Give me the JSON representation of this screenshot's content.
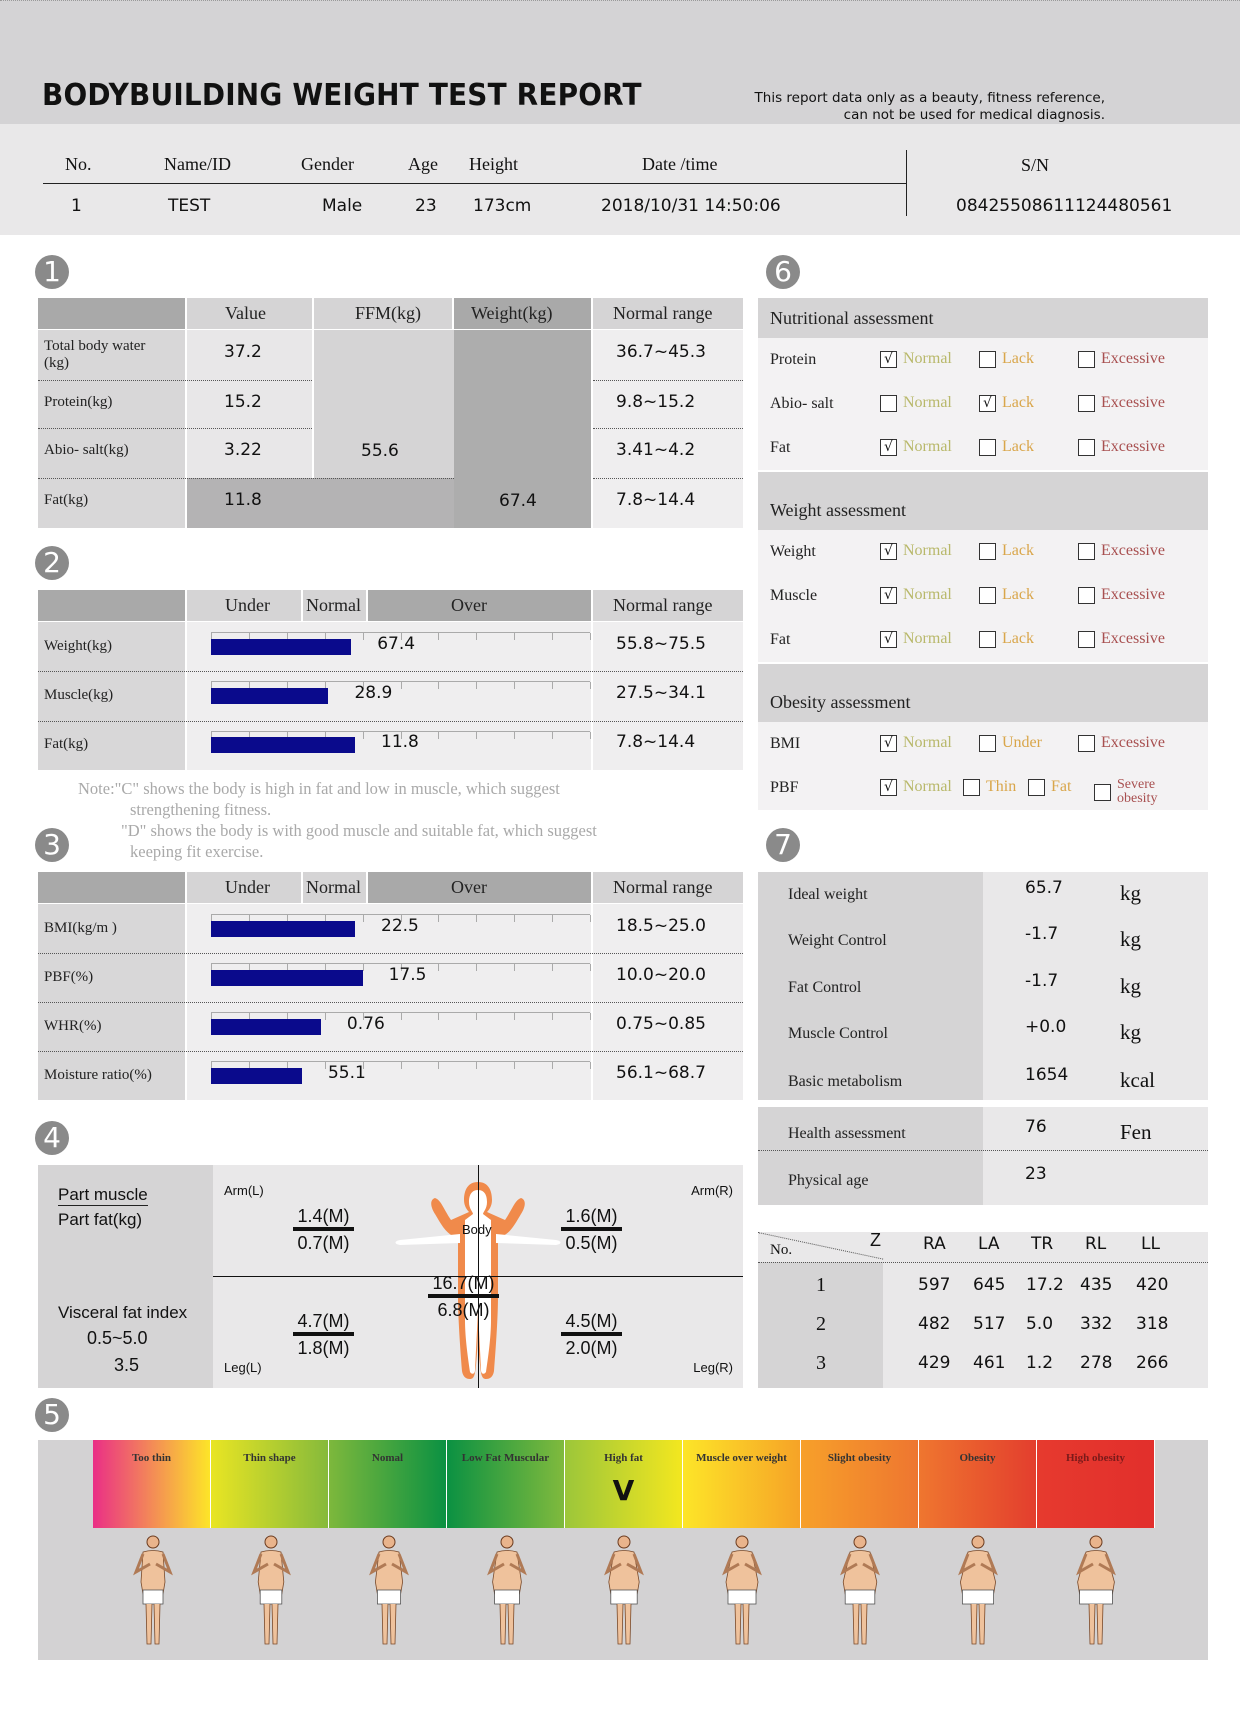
{
  "header": {
    "title": "BODYBUILDING WEIGHT TEST REPORT",
    "disclaimer_line1": "This report data only as a beauty, fitness reference,",
    "disclaimer_line2": "can not be used for medical diagnosis."
  },
  "info": {
    "headers": [
      "No.",
      "Name/ID",
      "Gender",
      "Age",
      "Height",
      "Date /time"
    ],
    "values": [
      "1",
      "TEST",
      "Male",
      "23",
      "173cm",
      "2018/10/31 14:50:06"
    ],
    "sn_label": "S/N",
    "sn_value": "08425508611124480561"
  },
  "sections": [
    "1",
    "2",
    "3",
    "4",
    "5",
    "6",
    "7"
  ],
  "composition": {
    "headers": [
      "Value",
      "FFM(kg)",
      "Weight(kg)",
      "Normal range"
    ],
    "rows": [
      {
        "label": "Total body water\n(kg)",
        "value": "37.2",
        "range": "36.7~45.3"
      },
      {
        "label": "Protein(kg)",
        "value": "15.2",
        "range": "9.8~15.2"
      },
      {
        "label": "Abio- salt(kg)",
        "value": "3.22",
        "range": "3.41~4.2"
      },
      {
        "label": "Fat(kg)",
        "value": "11.8",
        "range": "7.8~14.4"
      }
    ],
    "ffm": "55.6",
    "weight": "67.4"
  },
  "muscle_fat": {
    "headers": [
      "Under",
      "Normal",
      "Over",
      "Normal range"
    ],
    "rows": [
      {
        "label": "Weight(kg)",
        "value": "67.4",
        "fill": 0.37,
        "range": "55.8~75.5"
      },
      {
        "label": "Muscle(kg)",
        "value": "28.9",
        "fill": 0.31,
        "range": "27.5~34.1"
      },
      {
        "label": "Fat(kg)",
        "value": "11.8",
        "fill": 0.38,
        "range": "7.8~14.4"
      }
    ]
  },
  "note": {
    "line1": "Note:\"C\" shows the body is high in fat and low in muscle,  which suggest",
    "line2": "strengthening fitness.",
    "line3": "\"D\" shows the body is with good muscle and suitable fat,  which suggest",
    "line4": "keeping fit exercise."
  },
  "obesity_analysis": {
    "headers": [
      "Under",
      "Normal",
      "Over",
      "Normal range"
    ],
    "rows": [
      {
        "label": "BMI(kg/m )",
        "value": "22.5",
        "fill": 0.38,
        "range": "18.5~25.0"
      },
      {
        "label": "PBF(%)",
        "value": "17.5",
        "fill": 0.4,
        "range": "10.0~20.0"
      },
      {
        "label": "WHR(%)",
        "value": "0.76",
        "fill": 0.29,
        "range": "0.75~0.85"
      },
      {
        "label": "Moisture ratio(%)",
        "value": "55.1",
        "fill": 0.24,
        "range": "56.1~68.7"
      }
    ]
  },
  "segmental": {
    "legend_top": "Part muscle",
    "legend_bottom": "Part fat(kg)",
    "visceral_label": "Visceral fat index",
    "visceral_range": "0.5~5.0",
    "visceral_value": "3.5",
    "arm_l_label": "Arm(L)",
    "arm_r_label": "Arm(R)",
    "leg_l_label": "Leg(L)",
    "leg_r_label": "Leg(R)",
    "body_label": "Body",
    "arm_l": [
      "1.4(M)",
      "0.7(M)"
    ],
    "arm_r": [
      "1.6(M)",
      "0.5(M)"
    ],
    "trunk": [
      "16.7(M)",
      "6.8(M)"
    ],
    "leg_l": [
      "4.7(M)",
      "1.8(M)"
    ],
    "leg_r": [
      "4.5(M)",
      "2.0(M)"
    ],
    "body_color": "#f08a4b"
  },
  "body_type": {
    "categories": [
      "Too thin",
      "Thin shape",
      "Nomal",
      "Low Fat Muscular",
      "High fat",
      "Muscle over weight",
      "Slight obesity",
      "Obesity",
      "High obesity"
    ],
    "selected_index": 4,
    "marker": "V",
    "gradients": [
      [
        "#ea2f86",
        "#fde528"
      ],
      [
        "#e9e523",
        "#86ba3b"
      ],
      [
        "#7db83c",
        "#0b9142"
      ],
      [
        "#0b9142",
        "#80ba3d"
      ],
      [
        "#9cc63a",
        "#f3e71f"
      ],
      [
        "#fde528",
        "#f6a327"
      ],
      [
        "#f7a02a",
        "#ee7630"
      ],
      [
        "#ef762f",
        "#e33e2e"
      ],
      [
        "#e63a2e",
        "#e22f2c"
      ]
    ]
  },
  "assessment": {
    "groups": [
      {
        "title": "Nutritional assessment",
        "rows": [
          {
            "label": "Protein",
            "options": [
              "Normal",
              "Lack",
              "Excessive"
            ],
            "checked": 0
          },
          {
            "label": "Abio- salt",
            "options": [
              "Normal",
              "Lack",
              "Excessive"
            ],
            "checked": 1
          },
          {
            "label": "Fat",
            "options": [
              "Normal",
              "Lack",
              "Excessive"
            ],
            "checked": 0
          }
        ]
      },
      {
        "title": "Weight assessment",
        "rows": [
          {
            "label": "Weight",
            "options": [
              "Normal",
              "Lack",
              "Excessive"
            ],
            "checked": 0
          },
          {
            "label": "Muscle",
            "options": [
              "Normal",
              "Lack",
              "Excessive"
            ],
            "checked": 0
          },
          {
            "label": "Fat",
            "options": [
              "Normal",
              "Lack",
              "Excessive"
            ],
            "checked": 0
          }
        ]
      },
      {
        "title": "Obesity assessment",
        "rows": [
          {
            "label": "BMI",
            "options": [
              "Normal",
              "Under",
              "Excessive"
            ],
            "checked": 0
          },
          {
            "label": "PBF",
            "options": [
              "Normal",
              "Thin",
              "Fat",
              "Severe obesity"
            ],
            "checked": 0
          }
        ]
      }
    ],
    "colors": [
      "#b8b86a",
      "#d9a64a",
      "#a85050"
    ],
    "check_mark": "√"
  },
  "control": {
    "rows": [
      {
        "label": "Ideal weight",
        "value": "65.7",
        "unit": "kg"
      },
      {
        "label": "Weight Control",
        "value": "-1.7",
        "unit": "kg"
      },
      {
        "label": "Fat Control",
        "value": "-1.7",
        "unit": "kg"
      },
      {
        "label": "Muscle Control",
        "value": "+0.0",
        "unit": "kg"
      },
      {
        "label": "Basic metabolism",
        "value": "1654",
        "unit": "kcal"
      }
    ]
  },
  "health": {
    "rows": [
      {
        "label": "Health assessment",
        "value": "76",
        "unit": "Fen"
      },
      {
        "label": "Physical  age",
        "value": "23",
        "unit": ""
      }
    ]
  },
  "impedance": {
    "corner_top": "Z",
    "corner_bottom": "No.",
    "headers": [
      "RA",
      "LA",
      "TR",
      "RL",
      "LL"
    ],
    "rows": [
      {
        "no": "1",
        "values": [
          "597",
          "645",
          "17.2",
          "435",
          "420"
        ]
      },
      {
        "no": "2",
        "values": [
          "482",
          "517",
          "5.0",
          "332",
          "318"
        ]
      },
      {
        "no": "3",
        "values": [
          "429",
          "461",
          "1.2",
          "278",
          "266"
        ]
      }
    ]
  }
}
